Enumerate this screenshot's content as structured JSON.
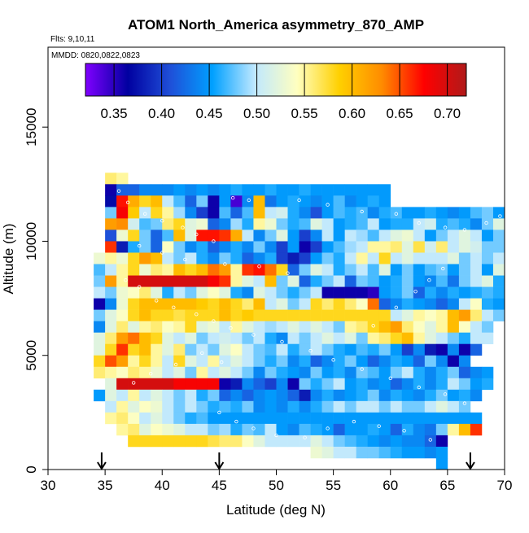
{
  "chart_data": {
    "type": "heatmap",
    "title": "ATOM1 North_America asymmetry_870_AMP",
    "subtitle_line1": "Flts: 9,10,11",
    "subtitle_line2": "MMDD: 0820,0822,0823",
    "xlabel": "Latitude (deg N)",
    "ylabel": "Altitude (m)",
    "xlim": [
      30,
      70
    ],
    "ylim": [
      0,
      18500
    ],
    "x_ticks": [
      30,
      35,
      40,
      45,
      50,
      55,
      60,
      65,
      70
    ],
    "x_tick_labels": [
      "30",
      "35",
      "40",
      "45",
      "50",
      "55",
      "60",
      "65",
      "70"
    ],
    "y_ticks": [
      0,
      5000,
      10000,
      15000
    ],
    "y_tick_labels": [
      "0",
      "5000",
      "10000",
      "15000"
    ],
    "colorbar": {
      "min": 0.32,
      "max": 0.72,
      "ticks": [
        0.35,
        0.4,
        0.45,
        0.5,
        0.55,
        0.6,
        0.65,
        0.7
      ],
      "tick_labels": [
        "0.35",
        "0.40",
        "0.45",
        "0.50",
        "0.55",
        "0.60",
        "0.65",
        "0.70"
      ],
      "colors": [
        "#8000ff",
        "#0000a0",
        "#1f4fd8",
        "#00a0ff",
        "#bfe8ff",
        "#ffffc0",
        "#ffd000",
        "#ff8c00",
        "#ff0000",
        "#b01a1a"
      ]
    },
    "arrows_latitude": [
      34.7,
      45.0,
      67.0
    ],
    "cell_size": {
      "dlat": 1.0,
      "dalt": 500
    },
    "rows": [
      {
        "alt": 12750,
        "lat_start": 35,
        "values": [
          0.56,
          0.55
        ]
      },
      {
        "alt": 12250,
        "lat_start": 35,
        "values": [
          0.36,
          0.42,
          0.42,
          0.44,
          0.44,
          0.44,
          0.45,
          0.44,
          0.45,
          0.44,
          0.45,
          0.46,
          0.45,
          0.45,
          0.46,
          0.45,
          0.45,
          0.46,
          0.45,
          0.45,
          0.45,
          0.45,
          0.45,
          0.45,
          0.45
        ]
      },
      {
        "alt": 11750,
        "lat_start": 35,
        "values": [
          0.37,
          0.67,
          0.61,
          0.58,
          0.6,
          0.5,
          0.47,
          0.42,
          0.48,
          0.36,
          0.45,
          0.34,
          0.44,
          0.6,
          0.43,
          0.45,
          0.46,
          0.45,
          0.44,
          0.45,
          0.47,
          0.44,
          0.45,
          0.46,
          0.45
        ]
      },
      {
        "alt": 11250,
        "lat_start": 35,
        "values": [
          0.48,
          0.68,
          0.59,
          0.5,
          0.58,
          0.55,
          0.49,
          0.44,
          0.4,
          0.36,
          0.47,
          0.42,
          0.47,
          0.6,
          0.5,
          0.51,
          0.46,
          0.44,
          0.41,
          0.45,
          0.47,
          0.46,
          0.47,
          0.44,
          0.46,
          0.47,
          0.45,
          0.45,
          0.46,
          0.45,
          0.44,
          0.45,
          0.47,
          0.48,
          0.45
        ]
      },
      {
        "alt": 10750,
        "lat_start": 35,
        "values": [
          0.62,
          0.63,
          0.51,
          0.47,
          0.48,
          0.56,
          0.58,
          0.52,
          0.53,
          0.42,
          0.44,
          0.49,
          0.46,
          0.55,
          0.53,
          0.48,
          0.46,
          0.47,
          0.52,
          0.5,
          0.45,
          0.46,
          0.47,
          0.5,
          0.45,
          0.46,
          0.46,
          0.5,
          0.51,
          0.46,
          0.47,
          0.46,
          0.44,
          0.48,
          0.52
        ]
      },
      {
        "alt": 10250,
        "lat_start": 35,
        "values": [
          0.41,
          0.53,
          0.58,
          0.48,
          0.42,
          0.47,
          0.6,
          0.52,
          0.67,
          0.67,
          0.66,
          0.61,
          0.5,
          0.44,
          0.48,
          0.52,
          0.45,
          0.4,
          0.44,
          0.5,
          0.45,
          0.5,
          0.49,
          0.47,
          0.5,
          0.52,
          0.53,
          0.5,
          0.45,
          0.48,
          0.5,
          0.52,
          0.5,
          0.45,
          0.48
        ]
      },
      {
        "alt": 9750,
        "lat_start": 35,
        "values": [
          0.66,
          0.38,
          0.46,
          0.48,
          0.42,
          0.54,
          0.48,
          0.44,
          0.46,
          0.42,
          0.44,
          0.46,
          0.44,
          0.48,
          0.44,
          0.4,
          0.45,
          0.36,
          0.4,
          0.45,
          0.47,
          0.49,
          0.5,
          0.55,
          0.55,
          0.56,
          0.52,
          0.57,
          0.51,
          0.56,
          0.5,
          0.52,
          0.51,
          0.48,
          0.48
        ]
      },
      {
        "alt": 9250,
        "lat_start": 34,
        "values": [
          0.53,
          0.55,
          0.53,
          0.58,
          0.62,
          0.6,
          0.5,
          0.48,
          0.5,
          0.46,
          0.44,
          0.48,
          0.46,
          0.42,
          0.44,
          0.46,
          0.4,
          0.38,
          0.4,
          0.45,
          0.48,
          0.46,
          0.5,
          0.55,
          0.5,
          0.58,
          0.5,
          0.52,
          0.5,
          0.5,
          0.5,
          0.52,
          0.48,
          0.5,
          0.48,
          0.5
        ]
      },
      {
        "alt": 8750,
        "lat_start": 34,
        "values": [
          0.47,
          0.5,
          0.55,
          0.58,
          0.53,
          0.56,
          0.55,
          0.6,
          0.58,
          0.6,
          0.64,
          0.62,
          0.55,
          0.66,
          0.67,
          0.64,
          0.58,
          0.42,
          0.48,
          0.52,
          0.5,
          0.46,
          0.48,
          0.5,
          0.47,
          0.52,
          0.45,
          0.48,
          0.45,
          0.47,
          0.48,
          0.45,
          0.48,
          0.5,
          0.45,
          0.52
        ]
      },
      {
        "alt": 8250,
        "lat_start": 34,
        "values": [
          0.48,
          0.62,
          0.55,
          0.7,
          0.7,
          0.7,
          0.7,
          0.7,
          0.7,
          0.7,
          0.68,
          0.66,
          0.55,
          0.52,
          0.5,
          0.6,
          0.48,
          0.52,
          0.42,
          0.46,
          0.48,
          0.5,
          0.42,
          0.48,
          0.47,
          0.45,
          0.46,
          0.48,
          0.45,
          0.44,
          0.47,
          0.43,
          0.48,
          0.5,
          0.52,
          0.46
        ]
      },
      {
        "alt": 7750,
        "lat_start": 34,
        "values": [
          0.5,
          0.48,
          0.53,
          0.54,
          0.56,
          0.52,
          0.46,
          0.5,
          0.48,
          0.52,
          0.54,
          0.52,
          0.46,
          0.44,
          0.52,
          0.5,
          0.48,
          0.46,
          0.48,
          0.5,
          0.36,
          0.36,
          0.36,
          0.36,
          0.35,
          0.45,
          0.46,
          0.48,
          0.42,
          0.46,
          0.44,
          0.46,
          0.45,
          0.46,
          0.47,
          0.46
        ]
      },
      {
        "alt": 7250,
        "lat_start": 34,
        "values": [
          0.36,
          0.44,
          0.53,
          0.58,
          0.6,
          0.6,
          0.6,
          0.6,
          0.6,
          0.59,
          0.58,
          0.6,
          0.58,
          0.56,
          0.6,
          0.5,
          0.52,
          0.48,
          0.5,
          0.58,
          0.56,
          0.58,
          0.56,
          0.54,
          0.64,
          0.42,
          0.44,
          0.46,
          0.45,
          0.44,
          0.42,
          0.44,
          0.5,
          0.54,
          0.46,
          0.45
        ]
      },
      {
        "alt": 6750,
        "lat_start": 34,
        "values": [
          0.48,
          0.52,
          0.54,
          0.58,
          0.6,
          0.58,
          0.58,
          0.57,
          0.58,
          0.58,
          0.58,
          0.6,
          0.58,
          0.59,
          0.58,
          0.58,
          0.58,
          0.58,
          0.58,
          0.58,
          0.58,
          0.58,
          0.58,
          0.58,
          0.58,
          0.58,
          0.5,
          0.52,
          0.55,
          0.54,
          0.55,
          0.6,
          0.62,
          0.56,
          0.5,
          0.48
        ]
      },
      {
        "alt": 6250,
        "lat_start": 34,
        "values": [
          0.44,
          0.52,
          0.56,
          0.52,
          0.55,
          0.56,
          0.54,
          0.55,
          0.58,
          0.52,
          0.53,
          0.5,
          0.55,
          0.52,
          0.5,
          0.49,
          0.5,
          0.52,
          0.5,
          0.52,
          0.5,
          0.48,
          0.55,
          0.56,
          0.58,
          0.6,
          0.62,
          0.56,
          0.54,
          0.52,
          0.55,
          0.6,
          0.54,
          0.5,
          0.48
        ]
      },
      {
        "alt": 5750,
        "lat_start": 34,
        "values": [
          0.52,
          0.56,
          0.62,
          0.64,
          0.6,
          0.58,
          0.52,
          0.5,
          0.52,
          0.48,
          0.5,
          0.51,
          0.5,
          0.48,
          0.5,
          0.46,
          0.44,
          0.5,
          0.48,
          0.5,
          0.52,
          0.5,
          0.52,
          0.48,
          0.55,
          0.56,
          0.58,
          0.6,
          0.55,
          0.52,
          0.5,
          0.48,
          0.46,
          0.5,
          0.5
        ]
      },
      {
        "alt": 5250,
        "lat_start": 34,
        "values": [
          0.52,
          0.58,
          0.66,
          0.58,
          0.6,
          0.55,
          0.52,
          0.56,
          0.48,
          0.5,
          0.48,
          0.52,
          0.54,
          0.5,
          0.48,
          0.47,
          0.5,
          0.46,
          0.48,
          0.5,
          0.48,
          0.46,
          0.45,
          0.47,
          0.46,
          0.48,
          0.45,
          0.4,
          0.44,
          0.38,
          0.36,
          0.44,
          0.36,
          0.42
        ]
      },
      {
        "alt": 4750,
        "lat_start": 34,
        "values": [
          0.58,
          0.65,
          0.62,
          0.55,
          0.58,
          0.55,
          0.5,
          0.58,
          0.52,
          0.5,
          0.55,
          0.5,
          0.52,
          0.5,
          0.48,
          0.46,
          0.48,
          0.44,
          0.46,
          0.42,
          0.44,
          0.46,
          0.48,
          0.45,
          0.42,
          0.44,
          0.46,
          0.45,
          0.42,
          0.48,
          0.44,
          0.36,
          0.44
        ]
      },
      {
        "alt": 4250,
        "lat_start": 34,
        "values": [
          0.56,
          0.55,
          0.54,
          0.56,
          0.55,
          0.53,
          0.5,
          0.52,
          0.48,
          0.55,
          0.5,
          0.52,
          0.5,
          0.48,
          0.44,
          0.48,
          0.46,
          0.45,
          0.44,
          0.48,
          0.45,
          0.46,
          0.44,
          0.48,
          0.47,
          0.45,
          0.48,
          0.5,
          0.46,
          0.44,
          0.46,
          0.48,
          0.42,
          0.44,
          0.45
        ]
      },
      {
        "alt": 3750,
        "lat_start": 35,
        "values": [
          0.52,
          0.7,
          0.7,
          0.7,
          0.7,
          0.7,
          0.68,
          0.68,
          0.68,
          0.68,
          0.36,
          0.38,
          0.44,
          0.42,
          0.4,
          0.44,
          0.36,
          0.48,
          0.46,
          0.48,
          0.5,
          0.45,
          0.46,
          0.44,
          0.45,
          0.42,
          0.44,
          0.46,
          0.44,
          0.46,
          0.5,
          0.48,
          0.45,
          0.46
        ]
      },
      {
        "alt": 3250,
        "lat_start": 34,
        "values": [
          0.45,
          0.52,
          0.5,
          0.55,
          0.5,
          0.52,
          0.5,
          0.48,
          0.5,
          0.46,
          0.48,
          0.42,
          0.44,
          0.42,
          0.44,
          0.45,
          0.44,
          0.42,
          0.38,
          0.44,
          0.46,
          0.44,
          0.45,
          0.46,
          0.48,
          0.44,
          0.46,
          0.45,
          0.44,
          0.46,
          0.48,
          0.45,
          0.46,
          0.44
        ]
      },
      {
        "alt": 2750,
        "lat_start": 35,
        "values": [
          0.5,
          0.55,
          0.52,
          0.54,
          0.53,
          0.5,
          0.48,
          0.5,
          0.48,
          0.46,
          0.47,
          0.46,
          0.48,
          0.44,
          0.45,
          0.44,
          0.46,
          0.44,
          0.46,
          0.48,
          0.5,
          0.48,
          0.5,
          0.5,
          0.48,
          0.5,
          0.48,
          0.48,
          0.5,
          0.52,
          0.5,
          0.48
        ]
      },
      {
        "alt": 2250,
        "lat_start": 35,
        "values": [
          0.55,
          0.56,
          0.54,
          0.5,
          0.52,
          0.5,
          0.48,
          0.46,
          0.47,
          0.45,
          0.45,
          0.45,
          0.45,
          0.45,
          0.45,
          0.45,
          0.45,
          0.45,
          0.45,
          0.45,
          0.45,
          0.45,
          0.45,
          0.45,
          0.45,
          0.45,
          0.45,
          0.45,
          0.45,
          0.45,
          0.45,
          0.45,
          0.45
        ]
      },
      {
        "alt": 1750,
        "lat_start": 36,
        "values": [
          0.55,
          0.56,
          0.52,
          0.54,
          0.53,
          0.52,
          0.5,
          0.5,
          0.48,
          0.49,
          0.46,
          0.48,
          0.47,
          0.5,
          0.45,
          0.44,
          0.47,
          0.46,
          0.45,
          0.42,
          0.45,
          0.45,
          0.46,
          0.45,
          0.42,
          0.46,
          0.44,
          0.43,
          0.48,
          0.55,
          0.6,
          0.66
        ]
      },
      {
        "alt": 1250,
        "lat_start": 37,
        "values": [
          0.58,
          0.58,
          0.58,
          0.58,
          0.58,
          0.58,
          0.58,
          0.57,
          0.56,
          0.56,
          0.54,
          0.52,
          0.5,
          0.5,
          0.5,
          0.5,
          0.52,
          0.5,
          0.48,
          0.47,
          0.46,
          0.45,
          0.44,
          0.45,
          0.44,
          0.44,
          0.42,
          0.36
        ]
      },
      {
        "alt": 750,
        "lat_start": 53,
        "values": [
          0.53,
          0.52,
          0.5,
          0.5,
          0.48,
          0.48,
          0.47,
          0.46,
          0.45,
          0.45,
          0.44,
          0.45
        ]
      },
      {
        "alt": 250,
        "lat_start": 64,
        "values": [
          0.45
        ]
      }
    ],
    "track_points": [
      [
        36.2,
        12200
      ],
      [
        37.0,
        11700
      ],
      [
        38.5,
        11200
      ],
      [
        40.0,
        10900
      ],
      [
        41.8,
        10600
      ],
      [
        43.0,
        10300
      ],
      [
        44.5,
        10000
      ],
      [
        46.2,
        11900
      ],
      [
        47.6,
        11800
      ],
      [
        52.0,
        11800
      ],
      [
        54.5,
        11600
      ],
      [
        57.5,
        11300
      ],
      [
        60.5,
        11200
      ],
      [
        62.5,
        10800
      ],
      [
        64.8,
        10600
      ],
      [
        66.5,
        10500
      ],
      [
        68.4,
        10800
      ],
      [
        69.6,
        11100
      ],
      [
        36.8,
        8300
      ],
      [
        38.0,
        8000
      ],
      [
        39.5,
        7400
      ],
      [
        41.0,
        7100
      ],
      [
        43.0,
        6800
      ],
      [
        44.5,
        6500
      ],
      [
        46.0,
        6200
      ],
      [
        48.0,
        5900
      ],
      [
        50.5,
        5600
      ],
      [
        53.0,
        5200
      ],
      [
        55.0,
        4800
      ],
      [
        57.5,
        4400
      ],
      [
        60.0,
        4000
      ],
      [
        62.5,
        3600
      ],
      [
        64.8,
        3300
      ],
      [
        66.5,
        2900
      ],
      [
        67.8,
        2600
      ],
      [
        68.8,
        2300
      ],
      [
        45.0,
        2500
      ],
      [
        46.5,
        2100
      ],
      [
        48.0,
        1800
      ],
      [
        50.0,
        1500
      ],
      [
        52.5,
        1400
      ],
      [
        54.5,
        1800
      ],
      [
        56.8,
        2100
      ],
      [
        59.0,
        1900
      ],
      [
        61.2,
        1700
      ],
      [
        63.5,
        1300
      ],
      [
        65.5,
        900
      ],
      [
        37.5,
        3800
      ],
      [
        39.0,
        4200
      ],
      [
        41.2,
        4600
      ],
      [
        43.5,
        5100
      ],
      [
        45.2,
        4700
      ],
      [
        58.5,
        6300
      ],
      [
        60.5,
        7100
      ],
      [
        62.2,
        7800
      ],
      [
        63.4,
        8300
      ],
      [
        64.6,
        8800
      ],
      [
        38.0,
        9800
      ],
      [
        40.0,
        9500
      ],
      [
        42.0,
        9200
      ],
      [
        45.5,
        9000
      ],
      [
        48.5,
        8900
      ],
      [
        51.0,
        8600
      ]
    ]
  }
}
